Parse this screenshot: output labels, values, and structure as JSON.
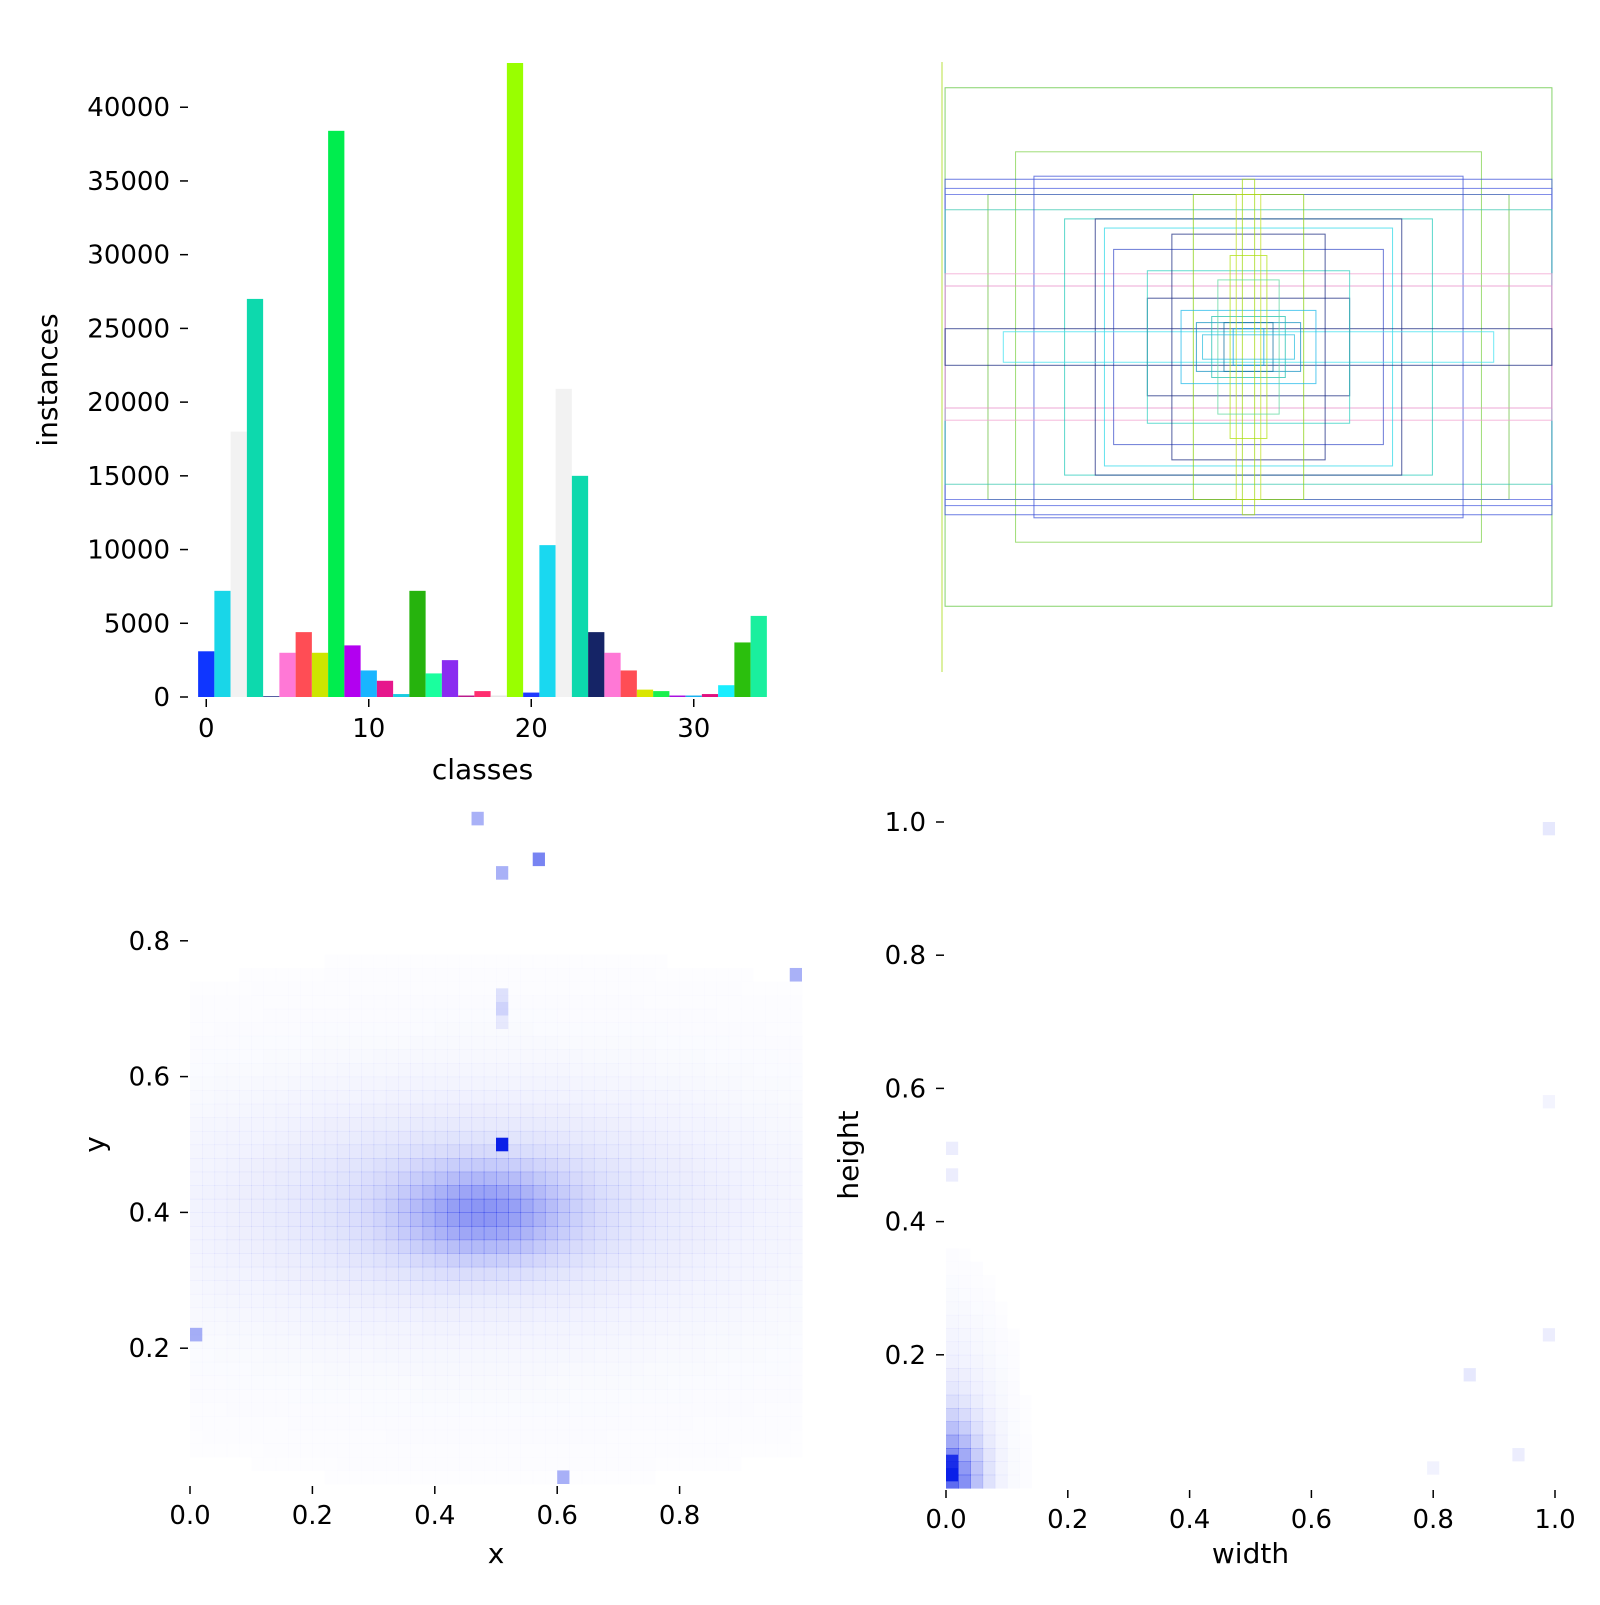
{
  "chart_data": [
    {
      "type": "bar",
      "xlabel": "classes",
      "ylabel": "instances",
      "ylim": [
        0,
        43000
      ],
      "yticks": [
        0,
        5000,
        10000,
        15000,
        20000,
        25000,
        30000,
        35000,
        40000
      ],
      "xticks": [
        0,
        10,
        20,
        30
      ],
      "xlim": [
        -1,
        35
      ],
      "categories": [
        0,
        1,
        2,
        3,
        4,
        5,
        6,
        7,
        8,
        9,
        10,
        11,
        12,
        13,
        14,
        15,
        16,
        17,
        18,
        19,
        20,
        21,
        22,
        23,
        24,
        25,
        26,
        27,
        28,
        29,
        30,
        31,
        32,
        33,
        34
      ],
      "values": [
        3100,
        7200,
        18000,
        27000,
        50,
        3000,
        4400,
        3000,
        38400,
        3500,
        1800,
        1100,
        200,
        7200,
        1600,
        2500,
        100,
        400,
        100,
        43000,
        300,
        10300,
        20900,
        15000,
        4400,
        3000,
        1800,
        500,
        400,
        100,
        100,
        200,
        800,
        3700,
        5500
      ],
      "colors": [
        "#0f36ff",
        "#19d6e8",
        "#f2f2f2",
        "#0dd9ad",
        "#1b2680",
        "#ff78d6",
        "#ff4d55",
        "#cde600",
        "#00ed4e",
        "#b200f0",
        "#19b5ff",
        "#e6178c",
        "#19cce0",
        "#26b30d",
        "#1aff9e",
        "#8a2bf0",
        "#ba1a8c",
        "#ff2d6f",
        "#e6e6e6",
        "#99ff00",
        "#1f3aff",
        "#1ad8f0",
        "#f2f2f2",
        "#0dd9ad",
        "#152466",
        "#ff78d6",
        "#ff4d55",
        "#d9e600",
        "#19f04d",
        "#a810e0",
        "#19b0f0",
        "#e0107f",
        "#19eeff",
        "#2bbf0d",
        "#1aef9e"
      ],
      "grid": false,
      "legend": "none"
    },
    {
      "type": "box-overlay",
      "grid": false,
      "boxes": [
        {
          "w": 0.99,
          "h": 0.85,
          "color": "#5ec43a"
        },
        {
          "w": 0.76,
          "h": 0.64,
          "color": "#7fd24a"
        },
        {
          "w": 0.85,
          "h": 0.5,
          "color": "#6ac040"
        },
        {
          "w": 0.99,
          "h": 0.55,
          "color": "#3a50d8"
        },
        {
          "w": 0.99,
          "h": 0.52,
          "color": "#4a5ee0"
        },
        {
          "w": 0.99,
          "h": 0.5,
          "color": "#5868e0"
        },
        {
          "w": 0.99,
          "h": 0.45,
          "color": "#3ac7b0"
        },
        {
          "w": 0.7,
          "h": 0.56,
          "color": "#3b4fd6"
        },
        {
          "w": 0.99,
          "h": 0.2,
          "color": "#e88ac8"
        },
        {
          "w": 0.99,
          "h": 0.24,
          "color": "#f0a0d0"
        },
        {
          "w": 0.6,
          "h": 0.42,
          "color": "#21c9b8"
        },
        {
          "w": 0.5,
          "h": 0.42,
          "color": "#1a2a80"
        },
        {
          "w": 0.47,
          "h": 0.39,
          "color": "#30d8e8"
        },
        {
          "w": 0.44,
          "h": 0.32,
          "color": "#3a4ec8"
        },
        {
          "w": 0.8,
          "h": 0.05,
          "color": "#40e0f0"
        },
        {
          "w": 0.99,
          "h": 0.06,
          "color": "#1a2a80"
        },
        {
          "w": 0.33,
          "h": 0.16,
          "color": "#1a2a80"
        },
        {
          "w": 0.33,
          "h": 0.25,
          "color": "#30d0c0"
        },
        {
          "w": 0.25,
          "h": 0.37,
          "color": "#1a2a80"
        },
        {
          "w": 0.18,
          "h": 0.5,
          "color": "#8ad010"
        },
        {
          "w": 0.22,
          "h": 0.12,
          "color": "#20b8e8"
        },
        {
          "w": 0.17,
          "h": 0.08,
          "color": "#1090c0"
        },
        {
          "w": 0.12,
          "h": 0.1,
          "color": "#20c0b0"
        },
        {
          "w": 0.08,
          "h": 0.08,
          "color": "#1070a0"
        },
        {
          "w": 0.05,
          "h": 0.06,
          "color": "#10a0e0"
        },
        {
          "w": 0.06,
          "h": 0.3,
          "color": "#b0e010"
        },
        {
          "w": 0.04,
          "h": 0.5,
          "color": "#c0e020"
        },
        {
          "w": 0.02,
          "h": 0.55,
          "color": "#a0d810"
        },
        {
          "w": 0.1,
          "h": 0.22,
          "color": "#60d8a0"
        },
        {
          "w": 0.15,
          "h": 0.04,
          "color": "#30c0e0"
        }
      ]
    },
    {
      "type": "heatmap",
      "xlabel": "x",
      "ylabel": "y",
      "xlim": [
        0,
        1
      ],
      "ylim": [
        0,
        1
      ],
      "xticks": [
        "0.0",
        "0.2",
        "0.4",
        "0.6",
        "0.8"
      ],
      "yticks": [
        "0.2",
        "0.4",
        "0.6",
        "0.8"
      ],
      "color": "#0a1fe8",
      "blobs": [
        {
          "cx": 0.48,
          "cy": 0.4,
          "sx": 0.09,
          "sy": 0.045,
          "a": 0.32
        },
        {
          "cx": 0.46,
          "cy": 0.41,
          "sx": 0.26,
          "sy": 0.1,
          "a": 0.12
        },
        {
          "cx": 0.5,
          "cy": 0.39,
          "sx": 0.55,
          "sy": 0.22,
          "a": 0.04
        }
      ],
      "cells": [
        {
          "x": 0.51,
          "y": 0.5,
          "a": 1.0
        },
        {
          "x": 0.57,
          "y": 0.92,
          "a": 0.55
        },
        {
          "x": 0.47,
          "y": 0.98,
          "a": 0.35
        },
        {
          "x": 0.51,
          "y": 0.9,
          "a": 0.35
        },
        {
          "x": 0.99,
          "y": 0.75,
          "a": 0.35
        },
        {
          "x": 0.01,
          "y": 0.22,
          "a": 0.35
        },
        {
          "x": 0.61,
          "y": 0.01,
          "a": 0.35
        },
        {
          "x": 0.51,
          "y": 0.7,
          "a": 0.18
        },
        {
          "x": 0.51,
          "y": 0.72,
          "a": 0.12
        },
        {
          "x": 0.51,
          "y": 0.68,
          "a": 0.08
        }
      ]
    },
    {
      "type": "heatmap",
      "xlabel": "width",
      "ylabel": "height",
      "xlim": [
        0,
        1
      ],
      "ylim": [
        0,
        1
      ],
      "xticks": [
        "0.0",
        "0.2",
        "0.4",
        "0.6",
        "0.8",
        "1.0"
      ],
      "yticks": [
        "0.2",
        "0.4",
        "0.6",
        "0.8",
        "1.0"
      ],
      "color": "#0a1fe8",
      "blobs": [
        {
          "cx": 0.0,
          "cy": 0.0,
          "sx": 0.035,
          "sy": 0.06,
          "a": 0.6
        },
        {
          "cx": 0.0,
          "cy": 0.05,
          "sx": 0.06,
          "sy": 0.14,
          "a": 0.1
        }
      ],
      "cells": [
        {
          "x": 0.01,
          "y": 0.02,
          "a": 1.0
        },
        {
          "x": 0.01,
          "y": 0.04,
          "a": 0.85
        },
        {
          "x": 0.99,
          "y": 0.99,
          "a": 0.1
        },
        {
          "x": 0.86,
          "y": 0.17,
          "a": 0.1
        },
        {
          "x": 0.94,
          "y": 0.05,
          "a": 0.08
        },
        {
          "x": 0.99,
          "y": 0.23,
          "a": 0.08
        },
        {
          "x": 0.8,
          "y": 0.03,
          "a": 0.06
        },
        {
          "x": 0.01,
          "y": 0.51,
          "a": 0.08
        },
        {
          "x": 0.01,
          "y": 0.47,
          "a": 0.08
        },
        {
          "x": 0.99,
          "y": 0.58,
          "a": 0.05
        }
      ]
    }
  ]
}
